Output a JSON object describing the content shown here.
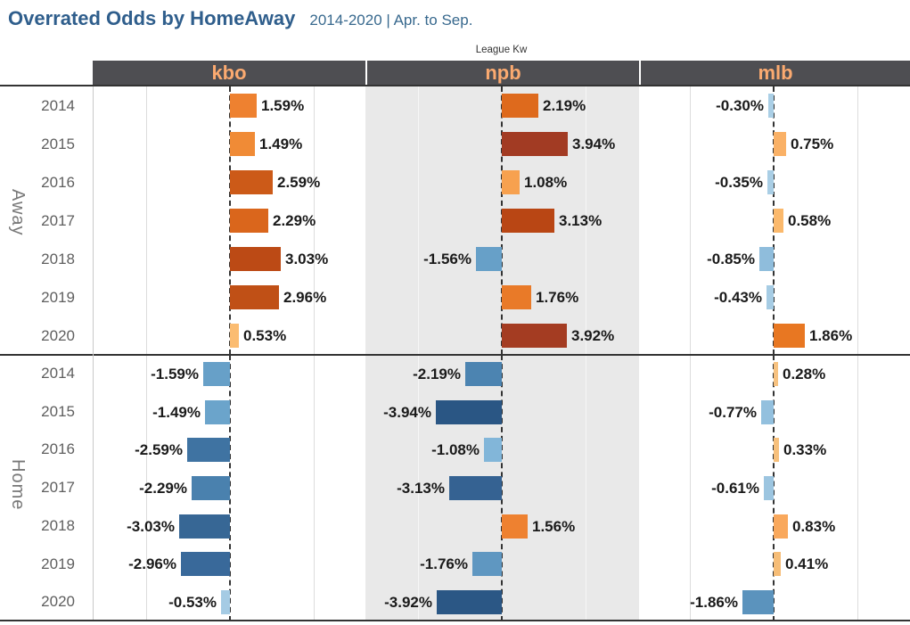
{
  "title": {
    "main": "Overrated Odds by HomeAway",
    "subtitle": "2014-2020 | Apr. to Sep."
  },
  "header": {
    "field_label": "League Kw",
    "columns": [
      "kbo",
      "npb",
      "mlb"
    ]
  },
  "sections": [
    "Away",
    "Home"
  ],
  "years": [
    "2014",
    "2015",
    "2016",
    "2017",
    "2018",
    "2019",
    "2020"
  ],
  "colors": {
    "title": "#2f5e8c",
    "subtitle": "#38698e",
    "field_label": "#333333",
    "header_bg": "#4e4e52",
    "header_text": "#fbaa70",
    "year_label": "#5f5f5f",
    "section_label": "#787878",
    "bar_label": "#1a1a1a",
    "dark_line": "#333333",
    "zero_line": "#333333",
    "npb_panel_bg": "#e9e9e9",
    "positive_accent": "#e87722",
    "negative_accent": "#5b93bd"
  },
  "chart_data": {
    "type": "bar",
    "orientation": "horizontal",
    "title": "Overrated Odds by HomeAway",
    "subtitle": "2014-2020 | Apr. to Sep.",
    "facet_column_field": "League Kw",
    "facet_columns": [
      "kbo",
      "npb",
      "mlb"
    ],
    "facet_row_field": "HomeAway",
    "facet_rows": [
      "Away",
      "Home"
    ],
    "categories": [
      "2014",
      "2015",
      "2016",
      "2017",
      "2018",
      "2019",
      "2020"
    ],
    "value_unit": "%",
    "axis": {
      "ticks_hidden": true,
      "zero_line_style": "dashed",
      "gridlines_at_pct": [
        -5,
        0,
        5
      ],
      "approx_range_pct": [
        -8.2,
        8.2
      ]
    },
    "legend": "none",
    "color_encoding": "diverging orange (positive) to blue (negative) by value",
    "series": [
      {
        "facet_row": "Away",
        "facet_col": "kbo",
        "values": [
          1.59,
          1.49,
          2.59,
          2.29,
          3.03,
          2.96,
          0.53
        ],
        "labels": [
          "1.59%",
          "1.49%",
          "2.59%",
          "2.29%",
          "3.03%",
          "2.96%",
          "0.53%"
        ],
        "colors": [
          "#ee8130",
          "#f08b36",
          "#cc5a18",
          "#da661c",
          "#bc4a15",
          "#c05016",
          "#fbbc71"
        ]
      },
      {
        "facet_row": "Away",
        "facet_col": "npb",
        "values": [
          2.19,
          3.94,
          1.08,
          3.13,
          -1.56,
          1.76,
          3.92
        ],
        "labels": [
          "2.19%",
          "3.94%",
          "1.08%",
          "3.13%",
          "-1.56%",
          "1.76%",
          "3.92%"
        ],
        "colors": [
          "#de6a1d",
          "#a23b23",
          "#f7a14f",
          "#b94614",
          "#67a0c8",
          "#e97a28",
          "#a43c22"
        ]
      },
      {
        "facet_row": "Away",
        "facet_col": "mlb",
        "values": [
          -0.3,
          0.75,
          -0.35,
          0.58,
          -0.85,
          -0.43,
          1.86
        ],
        "labels": [
          "-0.30%",
          "0.75%",
          "-0.35%",
          "0.58%",
          "-0.85%",
          "-0.43%",
          "1.86%"
        ],
        "colors": [
          "#aacfe6",
          "#fab166",
          "#a9cee5",
          "#fbb96c",
          "#8fbddc",
          "#a6cce4",
          "#e87722"
        ]
      },
      {
        "facet_row": "Home",
        "facet_col": "kbo",
        "values": [
          -1.59,
          -1.49,
          -2.59,
          -2.29,
          -3.03,
          -2.96,
          -0.53
        ],
        "labels": [
          "-1.59%",
          "-1.49%",
          "-2.59%",
          "-2.29%",
          "-3.03%",
          "-2.96%",
          "-0.53%"
        ],
        "colors": [
          "#67a0c8",
          "#6ba4cb",
          "#3f73a2",
          "#4a81ae",
          "#376795",
          "#39699a",
          "#a5cbe4"
        ]
      },
      {
        "facet_row": "Home",
        "facet_col": "npb",
        "values": [
          -2.19,
          -3.94,
          -1.08,
          -3.13,
          1.56,
          -1.76,
          -3.92
        ],
        "labels": [
          "-2.19%",
          "-3.94%",
          "-1.08%",
          "-3.13%",
          "1.56%",
          "-1.76%",
          "-3.92%"
        ],
        "colors": [
          "#4c84b1",
          "#2a5684",
          "#82b6d9",
          "#356292",
          "#ee8130",
          "#5f97c1",
          "#2b5785"
        ]
      },
      {
        "facet_row": "Home",
        "facet_col": "mlb",
        "values": [
          0.28,
          -0.77,
          0.33,
          -0.61,
          0.83,
          0.41,
          -1.86
        ],
        "labels": [
          "0.28%",
          "-0.77%",
          "0.33%",
          "-0.61%",
          "0.83%",
          "0.41%",
          "-1.86%"
        ],
        "colors": [
          "#f7c280",
          "#93c0de",
          "#f7c07c",
          "#9cc5e0",
          "#f9a85c",
          "#f6bd77",
          "#5b93bd"
        ]
      }
    ]
  }
}
